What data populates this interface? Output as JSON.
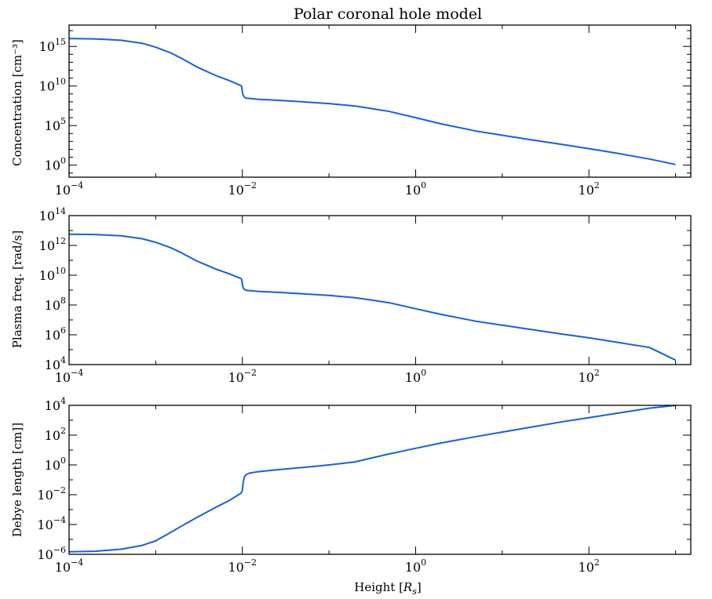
{
  "chart_data": [
    {
      "type": "line",
      "title": "Polar coronal hole model",
      "ylabel": "Concentration [cm⁻³]",
      "xlabel": "",
      "xscale": "log",
      "yscale": "log",
      "xlim": [
        0.0001,
        1500
      ],
      "ylim": [
        0.03,
        5e+17
      ],
      "xticks": [
        {
          "base": "10",
          "exp": "−4",
          "value": 0.0001
        },
        {
          "base": "10",
          "exp": "−2",
          "value": 0.01
        },
        {
          "base": "10",
          "exp": "0",
          "value": 1
        },
        {
          "base": "10",
          "exp": "2",
          "value": 100
        }
      ],
      "yticks": [
        {
          "base": "10",
          "exp": "0",
          "value": 1
        },
        {
          "base": "10",
          "exp": "5",
          "value": 100000
        },
        {
          "base": "10",
          "exp": "10",
          "value": 10000000000
        },
        {
          "base": "10",
          "exp": "15",
          "value": 1000000000000000.0
        }
      ],
      "series": [
        {
          "color": "#1560e0",
          "x": [
            0.0001,
            0.0002,
            0.0004,
            0.0007,
            0.001,
            0.0015,
            0.002,
            0.003,
            0.005,
            0.007,
            0.0095,
            0.0098,
            0.01,
            0.0102,
            0.0105,
            0.011,
            0.012,
            0.015,
            0.02,
            0.03,
            0.05,
            0.1,
            0.2,
            0.3,
            0.5,
            1,
            2,
            5,
            10,
            20,
            50,
            100,
            200,
            500,
            1000
          ],
          "y": [
            1e+16,
            9000000000000000.0,
            6000000000000000.0,
            2500000000000000.0,
            800000000000000.0,
            150000000000000.0,
            30000000000000.0,
            2500000000000.0,
            200000000000.0,
            50000000000.0,
            12000000000.0,
            9000000000.0,
            2000000000.0,
            700000000.0,
            400000000.0,
            300000000.0,
            270000000.0,
            210000000.0,
            180000000.0,
            140000000.0,
            100000000.0,
            60000000.0,
            30000000.0,
            15000000.0,
            6000000.0,
            1000000.0,
            160000.0,
            20000.0,
            6000,
            1800,
            400,
            120,
            35,
            6,
            1.2
          ]
        }
      ]
    },
    {
      "type": "line",
      "title": "",
      "ylabel": "Plasma freq. [rad/s]",
      "xlabel": "",
      "xscale": "log",
      "yscale": "log",
      "xlim": [
        0.0001,
        1500
      ],
      "ylim": [
        10000,
        100000000000000
      ],
      "xticks": [
        {
          "base": "10",
          "exp": "−4",
          "value": 0.0001
        },
        {
          "base": "10",
          "exp": "−2",
          "value": 0.01
        },
        {
          "base": "10",
          "exp": "0",
          "value": 1
        },
        {
          "base": "10",
          "exp": "2",
          "value": 100
        }
      ],
      "yticks": [
        {
          "base": "10",
          "exp": "4",
          "value": 10000
        },
        {
          "base": "10",
          "exp": "6",
          "value": 1000000
        },
        {
          "base": "10",
          "exp": "8",
          "value": 100000000
        },
        {
          "base": "10",
          "exp": "10",
          "value": 10000000000
        },
        {
          "base": "10",
          "exp": "12",
          "value": 1000000000000
        },
        {
          "base": "10",
          "exp": "14",
          "value": 100000000000000
        }
      ],
      "series": [
        {
          "color": "#1560e0",
          "x": [
            0.0001,
            0.0002,
            0.0004,
            0.0007,
            0.001,
            0.0015,
            0.002,
            0.003,
            0.005,
            0.007,
            0.0095,
            0.0098,
            0.01,
            0.0102,
            0.0105,
            0.011,
            0.012,
            0.015,
            0.02,
            0.03,
            0.05,
            0.1,
            0.2,
            0.3,
            0.5,
            1,
            2,
            5,
            10,
            20,
            50,
            100,
            200,
            500,
            1000
          ],
          "y": [
            5600000000000.0,
            5400000000000.0,
            4400000000000.0,
            2800000000000.0,
            1600000000000.0,
            690000000000.0,
            310000000000.0,
            89000000000.0,
            25000000000.0,
            12600000000.0,
            6200000000.0,
            5300000000.0,
            2500000000.0,
            1500000000.0,
            1130000000.0,
            980000000.0,
            930000000.0,
            820000000.0,
            760000000.0,
            670000000.0,
            560000000.0,
            440000000.0,
            310000000.0,
            220000000.0,
            140000000.0,
            56000000.0,
            23000000.0,
            8000000.0,
            4400000.0,
            2400000.0,
            1100000.0,
            620000.0,
            330000.0,
            140000.0,
            20000
          ]
        }
      ]
    },
    {
      "type": "line",
      "title": "",
      "ylabel": "Debye length [cm]]",
      "xlabel": "Height [R",
      "xlabel_sub": "s",
      "xlabel_end": "]",
      "xscale": "log",
      "yscale": "log",
      "xlim": [
        0.0001,
        1500
      ],
      "ylim": [
        1e-06,
        10000
      ],
      "xticks": [
        {
          "base": "10",
          "exp": "−4",
          "value": 0.0001
        },
        {
          "base": "10",
          "exp": "−2",
          "value": 0.01
        },
        {
          "base": "10",
          "exp": "0",
          "value": 1
        },
        {
          "base": "10",
          "exp": "2",
          "value": 100
        }
      ],
      "yticks": [
        {
          "base": "10",
          "exp": "−6",
          "value": 1e-06
        },
        {
          "base": "10",
          "exp": "−4",
          "value": 0.0001
        },
        {
          "base": "10",
          "exp": "−2",
          "value": 0.01
        },
        {
          "base": "10",
          "exp": "0",
          "value": 1
        },
        {
          "base": "10",
          "exp": "2",
          "value": 100
        },
        {
          "base": "10",
          "exp": "4",
          "value": 10000
        }
      ],
      "series": [
        {
          "color": "#1560e0",
          "x": [
            0.0001,
            0.0002,
            0.0004,
            0.0007,
            0.001,
            0.0015,
            0.002,
            0.003,
            0.005,
            0.007,
            0.0095,
            0.0098,
            0.01,
            0.0102,
            0.0105,
            0.011,
            0.012,
            0.015,
            0.02,
            0.03,
            0.05,
            0.1,
            0.2,
            0.3,
            0.5,
            1,
            2,
            5,
            10,
            20,
            50,
            100,
            200,
            500,
            1000
          ],
          "y": [
            1.5e-06,
            1.6e-06,
            2.2e-06,
            4e-06,
            8e-06,
            3e-05,
            8e-05,
            0.0003,
            0.0015,
            0.004,
            0.012,
            0.015,
            0.02,
            0.06,
            0.15,
            0.22,
            0.28,
            0.35,
            0.42,
            0.52,
            0.68,
            1,
            1.6,
            2.8,
            5.5,
            13,
            30,
            80,
            160,
            320,
            800,
            1500,
            2800,
            6500,
            12000
          ]
        }
      ]
    }
  ]
}
